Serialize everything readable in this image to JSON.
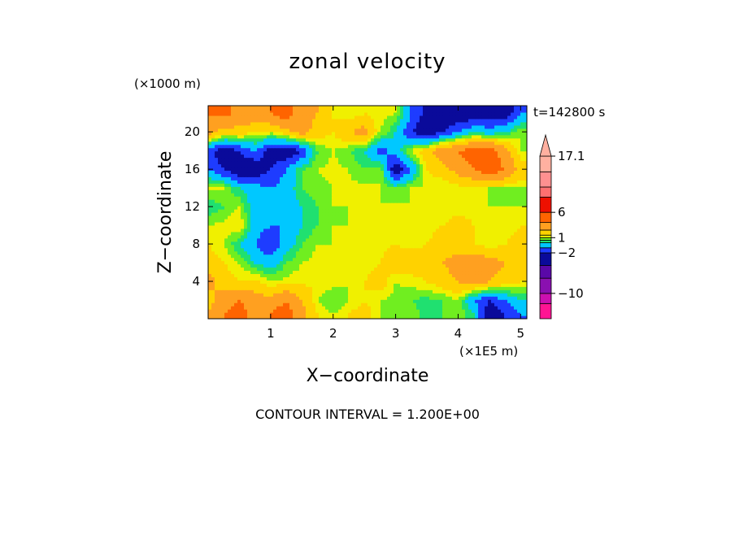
{
  "chart_data": {
    "type": "heatmap",
    "title": "zonal velocity",
    "xlabel": "X−coordinate",
    "ylabel": "Z−coordinate",
    "x_unit": "(×1E5 m)",
    "y_unit": "(×1000 m)",
    "xlim": [
      0.0,
      5.1
    ],
    "ylim": [
      0.0,
      22.8
    ],
    "x_ticks": [
      1,
      2,
      3,
      4,
      5
    ],
    "y_ticks": [
      4,
      8,
      12,
      16,
      20
    ],
    "time_label": "t=142800 s",
    "footer": "CONTOUR INTERVAL = 1.200E+00",
    "colorbar": {
      "levels": [
        -15.0,
        -12.0,
        -10.0,
        -7.0,
        -4.5,
        -2.0,
        -1.0,
        0.0,
        0.5,
        1.0,
        1.5,
        2.5,
        4.0,
        6.0,
        9.0,
        11.0,
        14.0,
        17.1
      ],
      "colors": [
        "#ff1493",
        "#cc10b0",
        "#8a10b0",
        "#5a08a8",
        "#0a0a9a",
        "#1e3cff",
        "#00c8ff",
        "#20e070",
        "#70ee20",
        "#f0f000",
        "#ffd200",
        "#ffa020",
        "#ff6400",
        "#ee1000",
        "#ff7070",
        "#ff9090",
        "#ffb0a0"
      ],
      "labels": [
        {
          "value": 17.1,
          "text": "17.1"
        },
        {
          "value": 6.0,
          "text": "6"
        },
        {
          "value": 1.0,
          "text": "1"
        },
        {
          "value": -2.0,
          "text": "−2"
        },
        {
          "value": -10.0,
          "text": "−10"
        }
      ]
    },
    "grid_x": [
      0.0,
      0.25,
      0.5,
      0.75,
      1.0,
      1.25,
      1.5,
      1.75,
      2.0,
      2.25,
      2.5,
      2.75,
      3.0,
      3.25,
      3.5,
      3.75,
      4.0,
      4.25,
      4.5,
      4.75,
      5.0
    ],
    "grid_y": [
      0.5,
      2,
      4,
      6,
      8,
      10,
      12,
      14,
      16,
      18,
      20,
      22
    ],
    "values": [
      [
        2.5,
        4,
        5,
        3,
        4,
        5,
        3,
        1.5,
        1,
        1.5,
        2,
        1,
        0.5,
        1,
        0,
        0.5,
        1,
        0,
        -3,
        -2,
        -1
      ],
      [
        2,
        3,
        4,
        3,
        3,
        4,
        2.5,
        1,
        0.5,
        1,
        1.5,
        1,
        0.8,
        0.5,
        0.3,
        0.5,
        1,
        -1,
        -2,
        -1,
        0
      ],
      [
        3,
        2,
        1.5,
        1.8,
        1,
        1.2,
        1.3,
        1.5,
        1.2,
        1,
        1.5,
        2,
        1,
        1.2,
        1.5,
        2,
        2.5,
        3,
        2.5,
        2,
        1.5
      ],
      [
        2,
        1.5,
        1,
        0,
        -0.5,
        0.5,
        1,
        1.2,
        1.1,
        1,
        1.2,
        1.5,
        2,
        2,
        2,
        2.5,
        3,
        3.5,
        3,
        2.5,
        2
      ],
      [
        1.5,
        1,
        0,
        -1,
        -2,
        -0.5,
        0.5,
        1,
        1,
        1.1,
        1,
        1.3,
        1.5,
        1.3,
        1.5,
        2,
        2,
        1.5,
        1.2,
        1.5,
        2
      ],
      [
        1,
        1.2,
        1.5,
        -0.5,
        -1,
        -1,
        0,
        0.5,
        1,
        1,
        1.1,
        1.2,
        1.1,
        1,
        1.2,
        1.5,
        2,
        1.5,
        1.2,
        1,
        1.5
      ],
      [
        0,
        0.5,
        1,
        -0.5,
        -1,
        -0.5,
        0,
        0.5,
        1,
        1,
        1,
        1,
        1.1,
        1,
        1.2,
        1,
        1.1,
        1.2,
        1,
        1,
        1
      ],
      [
        1.2,
        1,
        0,
        -0.5,
        -1,
        -0.5,
        0.5,
        0.8,
        1,
        1.1,
        1.2,
        1,
        0.5,
        1,
        1,
        1,
        1.2,
        1,
        1,
        1,
        1
      ],
      [
        -1,
        -2,
        -3,
        -3,
        -2,
        -1,
        0.5,
        1,
        1.2,
        1,
        0.5,
        1,
        -3,
        -1,
        1.5,
        2,
        3,
        4,
        5,
        4,
        2
      ],
      [
        -1.5,
        -3,
        -2,
        -1,
        -2.5,
        -3,
        -2,
        0.5,
        1,
        0.5,
        0,
        -1.5,
        -0.5,
        1.2,
        2,
        3.5,
        4,
        5,
        5,
        3,
        1
      ],
      [
        3,
        2,
        2,
        1.5,
        1.2,
        2,
        3,
        2,
        1.5,
        2.5,
        3,
        1,
        0,
        -2,
        -3,
        -2,
        -1,
        0,
        -0.5,
        0,
        1
      ],
      [
        4,
        4.5,
        3.5,
        3.5,
        4,
        5,
        3,
        2.5,
        1.5,
        1,
        1.5,
        1.2,
        1,
        -1,
        -2.5,
        -3,
        -3,
        -3,
        -2.5,
        -3,
        -1
      ]
    ]
  }
}
